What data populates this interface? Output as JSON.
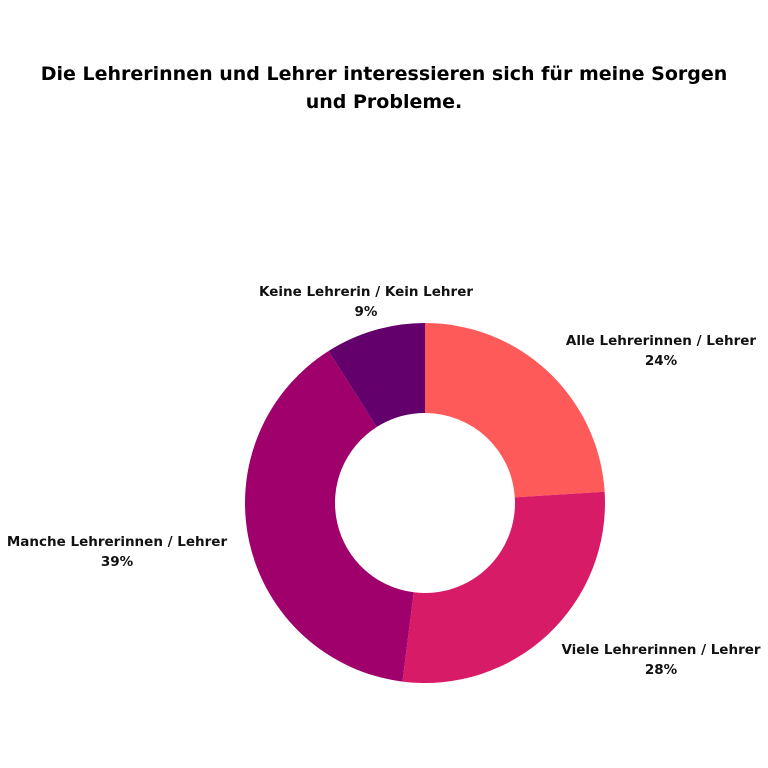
{
  "chart_data": {
    "type": "pie",
    "variant": "donut",
    "title": "Die Lehrerinnen und Lehrer interessieren sich für meine Sorgen und Probleme.",
    "slices": [
      {
        "label": "Alle Lehrerinnen / Lehrer",
        "value": 24,
        "value_label": "24%",
        "color": "#FF5A5A"
      },
      {
        "label": "Viele Lehrerinnen / Lehrer",
        "value": 28,
        "value_label": "28%",
        "color": "#D81B67"
      },
      {
        "label": "Manche Lehrerinnen / Lehrer",
        "value": 39,
        "value_label": "39%",
        "color": "#A0006B"
      },
      {
        "label": "Keine Lehrerin / Kein Lehrer",
        "value": 9,
        "value_label": "9%",
        "color": "#63006B"
      }
    ],
    "start_angle": "12 o'clock",
    "direction": "clockwise",
    "legend": "none"
  }
}
